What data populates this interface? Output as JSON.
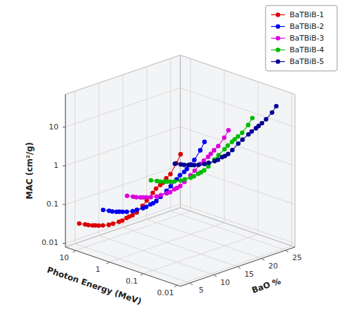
{
  "chart_data": {
    "type": "line3d",
    "xlabel": "Photon Energy (MeV)",
    "ylabel": "MAC (cm²/g)",
    "zlabel": "BaO %",
    "x": [
      0.015,
      0.02,
      0.03,
      0.04,
      0.05,
      0.06,
      0.08,
      0.1,
      0.15,
      0.2,
      0.3,
      0.4,
      0.5,
      0.6,
      0.8,
      1.0,
      1.5,
      2.0,
      3.0,
      4.0,
      5.0,
      6.0,
      8.0,
      10.0,
      15.0
    ],
    "series": [
      {
        "name": "BaTBiB-1",
        "color": "#dd0000",
        "z": 5,
        "values": [
          14.0,
          7.5,
          3.5,
          2.5,
          1.8,
          1.5,
          1.1,
          0.8,
          0.45,
          0.3,
          0.18,
          0.14,
          0.12,
          0.105,
          0.083,
          0.072,
          0.057,
          0.049,
          0.042,
          0.038,
          0.036,
          0.034,
          0.032,
          0.031,
          0.029
        ]
      },
      {
        "name": "BaTBiB-2",
        "color": "#0000ee",
        "z": 10,
        "values": [
          18.0,
          10.0,
          5.0,
          3.5,
          2.5,
          2.0,
          1.5,
          1.1,
          0.65,
          0.45,
          0.28,
          0.2,
          0.165,
          0.145,
          0.115,
          0.1,
          0.08,
          0.068,
          0.058,
          0.053,
          0.05,
          0.047,
          0.044,
          0.043,
          0.04
        ]
      },
      {
        "name": "BaTBiB-3",
        "color": "#dd00dd",
        "z": 15,
        "values": [
          22.0,
          13.0,
          7.0,
          5.0,
          3.8,
          3.0,
          2.2,
          1.7,
          1.0,
          0.7,
          0.42,
          0.3,
          0.25,
          0.22,
          0.17,
          0.148,
          0.118,
          0.1,
          0.085,
          0.077,
          0.072,
          0.068,
          0.063,
          0.061,
          0.057
        ]
      },
      {
        "name": "BaTBiB-4",
        "color": "#00bb00",
        "z": 20,
        "values": [
          28.0,
          17.0,
          9.5,
          7.0,
          5.5,
          4.5,
          3.3,
          2.5,
          1.55,
          1.1,
          0.65,
          0.47,
          0.39,
          0.34,
          0.27,
          0.23,
          0.185,
          0.158,
          0.134,
          0.12,
          0.113,
          0.107,
          0.099,
          0.095,
          0.088
        ]
      },
      {
        "name": "BaTBiB-5",
        "color": "#000090",
        "z": 25,
        "values": [
          35.0,
          22.0,
          13.0,
          9.5,
          7.5,
          6.2,
          4.7,
          3.7,
          2.4,
          1.75,
          1.05,
          0.76,
          0.63,
          0.56,
          0.44,
          0.38,
          0.305,
          0.26,
          0.22,
          0.198,
          0.186,
          0.176,
          0.163,
          0.157,
          0.145
        ]
      }
    ],
    "xlim": [
      0.008,
      20
    ],
    "xticks": [
      0.01,
      0.1,
      1,
      10
    ],
    "ylim": [
      0.008,
      70
    ],
    "yticks": [
      0.01,
      0.1,
      1,
      10
    ],
    "zlim": [
      3,
      27
    ],
    "zticks": [
      5,
      10,
      15,
      20,
      25
    ],
    "log": true,
    "grid": true,
    "legend": "upper right",
    "marker": "circle",
    "line_style": "solid"
  }
}
